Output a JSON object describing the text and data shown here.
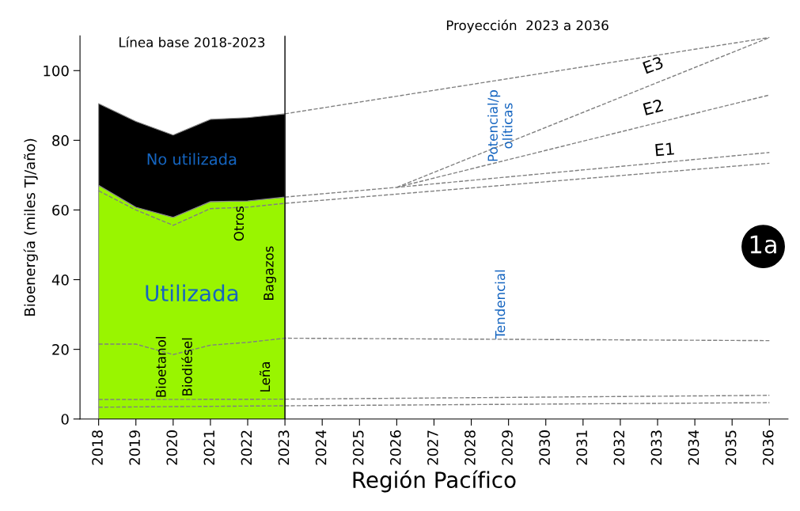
{
  "chart_data": {
    "type": "area",
    "stacked": true,
    "xlabel": "Región Pacífico",
    "ylabel": "Bioenergía (miles TJ/año)",
    "x": [
      2018,
      2019,
      2020,
      2021,
      2022,
      2023
    ],
    "series": [
      {
        "name": "Utilizada",
        "color": "#99f500",
        "values": [
          67.1,
          60.8,
          57.9,
          62.4,
          62.6,
          63.7
        ]
      },
      {
        "name": "No utilizada",
        "color": "#000000",
        "values": [
          23.4,
          24.6,
          23.6,
          23.6,
          23.9,
          23.9
        ]
      },
      {
        "type": "line",
        "color": "#808080",
        "x": [
          2018,
          2023,
          2036
        ],
        "values": [
          3.4,
          3.8,
          4.7
        ]
      },
      {
        "type": "line",
        "color": "#808080",
        "x": [
          2018,
          2023,
          2036
        ],
        "values": [
          5.6,
          5.7,
          6.8
        ]
      },
      {
        "type": "line",
        "color": "#808080",
        "x": [
          2018,
          2019,
          2020,
          2021,
          2022,
          2023,
          2036
        ],
        "values": [
          21.5,
          21.5,
          18.5,
          21.2,
          22,
          23.2,
          22.5
        ]
      },
      {
        "type": "line",
        "color": "#808080",
        "x": [
          2018,
          2019,
          2020,
          2021,
          2022,
          2023,
          2036
        ],
        "values": [
          65.5,
          60,
          55.6,
          60.4,
          60.8,
          61.9,
          73.4
        ]
      },
      {
        "type": "line",
        "color": "#808080",
        "x": [
          2023,
          2026,
          2036
        ],
        "values": [
          63.7,
          66.5,
          76.5
        ]
      },
      {
        "type": "line",
        "color": "#808080",
        "x": [
          2026,
          2036
        ],
        "values": [
          66.5,
          93
        ]
      },
      {
        "type": "line",
        "color": "#808080",
        "x": [
          2026,
          2036
        ],
        "values": [
          66.5,
          109.5
        ]
      },
      {
        "type": "line",
        "color": "#808080",
        "x": [
          2023,
          2036
        ],
        "values": [
          87.6,
          109.5
        ]
      }
    ],
    "line_style": "dashed",
    "marker": "none",
    "xlim": [
      2017.5,
      2036.5
    ],
    "xticks": [
      2018,
      2019,
      2020,
      2021,
      2022,
      2023,
      2024,
      2025,
      2026,
      2027,
      2028,
      2029,
      2030,
      2031,
      2032,
      2033,
      2034,
      2035,
      2036
    ],
    "ylim": [
      0,
      110
    ],
    "yticks": [
      0,
      20,
      40,
      60,
      80,
      100
    ],
    "grid": false,
    "legend": false,
    "ref_lines": [
      {
        "axis": "x",
        "value": 2023,
        "color": "#000000"
      }
    ],
    "annotations": [
      "Línea base 2018-2023",
      "Proyección  2023 a 2036",
      "Otros",
      "Bagazos",
      "Bioetanol",
      "Biodiésel",
      "Leña",
      "E3",
      "E2",
      "E1",
      "Potencial/p\nolíticas",
      "Tendencial",
      "1a"
    ]
  }
}
